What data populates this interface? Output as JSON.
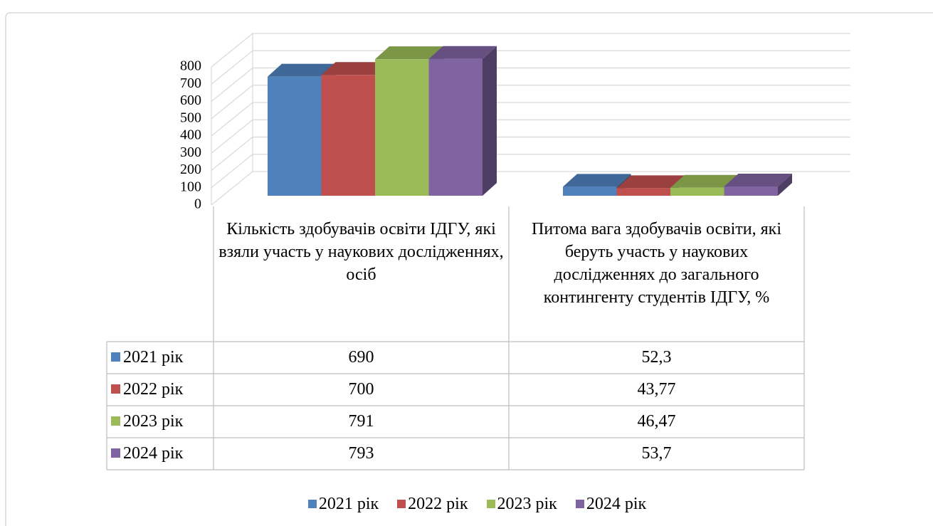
{
  "chart_data": {
    "type": "bar3d",
    "categories": [
      "Кількість здобувачів освіти ІДГУ, які взяли участь у наукових дослідженнях, осіб",
      "Питома вага здобувачів освіти, які беруть участь у наукових дослідженнях до загального контингенту студентів ІДГУ, %"
    ],
    "series": [
      {
        "name": "2021 рік",
        "color": "#4f81bd",
        "values": [
          690,
          52.3
        ],
        "value_labels": [
          "690",
          "52,3"
        ]
      },
      {
        "name": "2022 рік",
        "color": "#c0504d",
        "values": [
          700,
          43.77
        ],
        "value_labels": [
          "700",
          "43,77"
        ]
      },
      {
        "name": "2023 рік",
        "color": "#9bbb59",
        "values": [
          791,
          46.47
        ],
        "value_labels": [
          "791",
          "46,47"
        ]
      },
      {
        "name": "2024 рік",
        "color": "#8064a2",
        "values": [
          793,
          53.7
        ],
        "value_labels": [
          "793",
          "53,7"
        ]
      }
    ],
    "ylim": [
      0,
      800
    ],
    "yticks": [
      0,
      100,
      200,
      300,
      400,
      500,
      600,
      700,
      800
    ],
    "grid": true,
    "data_table": true,
    "legend": "bottom"
  }
}
